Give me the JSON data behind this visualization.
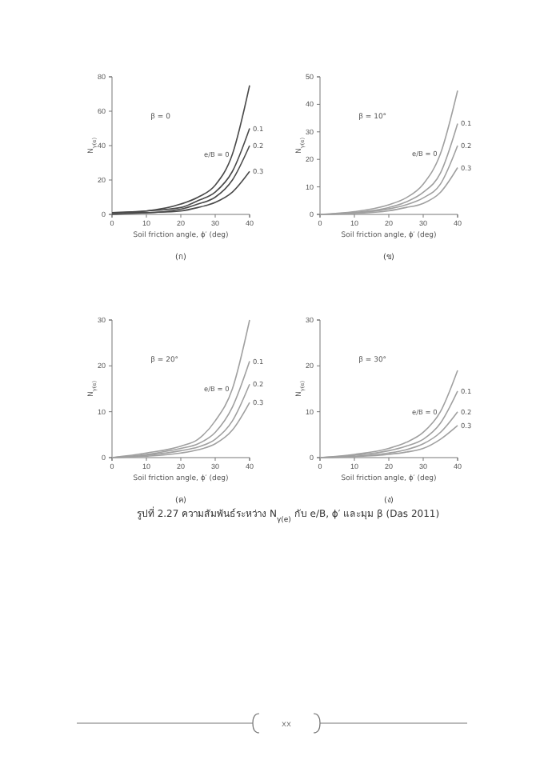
{
  "chart_data": [
    {
      "type": "line",
      "title": "(ก)",
      "xlabel": "Soil friction angle, ϕ′ (deg)",
      "ylabel": "N$_{γ(e)}$",
      "xlim": [
        0,
        40
      ],
      "xticks": [
        0,
        10,
        20,
        30,
        40
      ],
      "ylim": [
        0,
        80
      ],
      "yticks": [
        0,
        20,
        40,
        60,
        80
      ],
      "annotations": [
        "β = 0"
      ],
      "series": [
        {
          "name": "e/B = 0",
          "color": "#4a4a4a",
          "x": [
            0,
            10,
            20,
            25,
            30,
            35,
            40
          ],
          "values": [
            1,
            2,
            6,
            10,
            17,
            35,
            75
          ]
        },
        {
          "name": "0.1",
          "color": "#4a4a4a",
          "x": [
            0,
            10,
            20,
            25,
            30,
            35,
            40
          ],
          "values": [
            1,
            2,
            4,
            8,
            13,
            25,
            50
          ]
        },
        {
          "name": "0.2",
          "color": "#4a4a4a",
          "x": [
            0,
            10,
            20,
            25,
            30,
            35,
            40
          ],
          "values": [
            1,
            1,
            3,
            6,
            10,
            20,
            40
          ]
        },
        {
          "name": "0.3",
          "color": "#4a4a4a",
          "x": [
            0,
            10,
            20,
            25,
            30,
            35,
            40
          ],
          "values": [
            0,
            1,
            2,
            4,
            7,
            13,
            25
          ]
        }
      ]
    },
    {
      "type": "line",
      "title": "(ข)",
      "xlabel": "Soil friction angle, ϕ′ (deg)",
      "ylabel": "N$_{γ(e)}$",
      "xlim": [
        0,
        40
      ],
      "xticks": [
        0,
        10,
        20,
        30,
        40
      ],
      "ylim": [
        0,
        50
      ],
      "yticks": [
        0,
        10,
        20,
        30,
        40,
        50
      ],
      "annotations": [
        "β = 10°"
      ],
      "series": [
        {
          "name": "e/B = 0",
          "color": "#a0a0a0",
          "x": [
            0,
            10,
            20,
            25,
            30,
            35,
            40
          ],
          "values": [
            0,
            1,
            3.5,
            6,
            11,
            22,
            45
          ]
        },
        {
          "name": "0.1",
          "color": "#a0a0a0",
          "x": [
            0,
            10,
            20,
            25,
            30,
            35,
            40
          ],
          "values": [
            0,
            0.7,
            2.5,
            4.5,
            8,
            15,
            33
          ]
        },
        {
          "name": "0.2",
          "color": "#a0a0a0",
          "x": [
            0,
            10,
            20,
            25,
            30,
            35,
            40
          ],
          "values": [
            0,
            0.5,
            2,
            3.5,
            6,
            11,
            25
          ]
        },
        {
          "name": "0.3",
          "color": "#a0a0a0",
          "x": [
            0,
            10,
            20,
            25,
            30,
            35,
            40
          ],
          "values": [
            0,
            0.3,
            1.3,
            2.5,
            4,
            8,
            17
          ]
        }
      ]
    },
    {
      "type": "line",
      "title": "(ค)",
      "xlabel": "Soil friction angle, ϕ′ (deg)",
      "ylabel": "N$_{γ(e)}$",
      "xlim": [
        0,
        40
      ],
      "xticks": [
        0,
        10,
        20,
        30,
        40
      ],
      "ylim": [
        0,
        30
      ],
      "yticks": [
        0,
        10,
        20,
        30
      ],
      "annotations": [
        "β = 20°"
      ],
      "series": [
        {
          "name": "e/B = 0",
          "color": "#a0a0a0",
          "x": [
            0,
            10,
            20,
            25,
            30,
            35,
            40
          ],
          "values": [
            0,
            1,
            2.5,
            4,
            8,
            15,
            30
          ]
        },
        {
          "name": "0.1",
          "color": "#a0a0a0",
          "x": [
            0,
            10,
            20,
            25,
            30,
            35,
            40
          ],
          "values": [
            0,
            0.7,
            2,
            3,
            5.5,
            11,
            21
          ]
        },
        {
          "name": "0.2",
          "color": "#a0a0a0",
          "x": [
            0,
            10,
            20,
            25,
            30,
            35,
            40
          ],
          "values": [
            0,
            0.5,
            1.5,
            2.3,
            4,
            8,
            16
          ]
        },
        {
          "name": "0.3",
          "color": "#a0a0a0",
          "x": [
            0,
            10,
            20,
            25,
            30,
            35,
            40
          ],
          "values": [
            0,
            0.3,
            1,
            1.7,
            3,
            6,
            12
          ]
        }
      ]
    },
    {
      "type": "line",
      "title": "(ง)",
      "xlabel": "Soil friction angle, ϕ′ (deg)",
      "ylabel": "N$_{γ(e)}$",
      "xlim": [
        0,
        40
      ],
      "xticks": [
        0,
        10,
        20,
        30,
        40
      ],
      "ylim": [
        0,
        30
      ],
      "yticks": [
        0,
        10,
        20,
        30
      ],
      "annotations": [
        "β = 30°",
        "รูปที่ 2.27 ความสัมพันธ์ระหว่าง N$_{γ(e)}$ กับ e/B, ϕ′ และมุม β (Das 2011)",
        "xx"
      ],
      "series": [
        {
          "name": "e/B = 0",
          "color": "#a0a0a0",
          "x": [
            0,
            10,
            20,
            25,
            30,
            35,
            40
          ],
          "values": [
            0,
            0.7,
            2,
            3.3,
            5.5,
            10,
            19
          ]
        },
        {
          "name": "0.1",
          "color": "#a0a0a0",
          "x": [
            0,
            10,
            20,
            25,
            30,
            35,
            40
          ],
          "values": [
            0,
            0.5,
            1.5,
            2.5,
            4,
            7.5,
            14.5
          ]
        },
        {
          "name": "0.2",
          "color": "#a0a0a0",
          "x": [
            0,
            10,
            20,
            25,
            30,
            35,
            40
          ],
          "values": [
            0,
            0.3,
            1,
            1.7,
            3,
            5.5,
            10
          ]
        },
        {
          "name": "0.3",
          "color": "#a0a0a0",
          "x": [
            0,
            10,
            20,
            25,
            30,
            35,
            40
          ],
          "values": [
            0,
            0.2,
            0.7,
            1.2,
            2,
            4,
            7
          ]
        }
      ]
    }
  ]
}
